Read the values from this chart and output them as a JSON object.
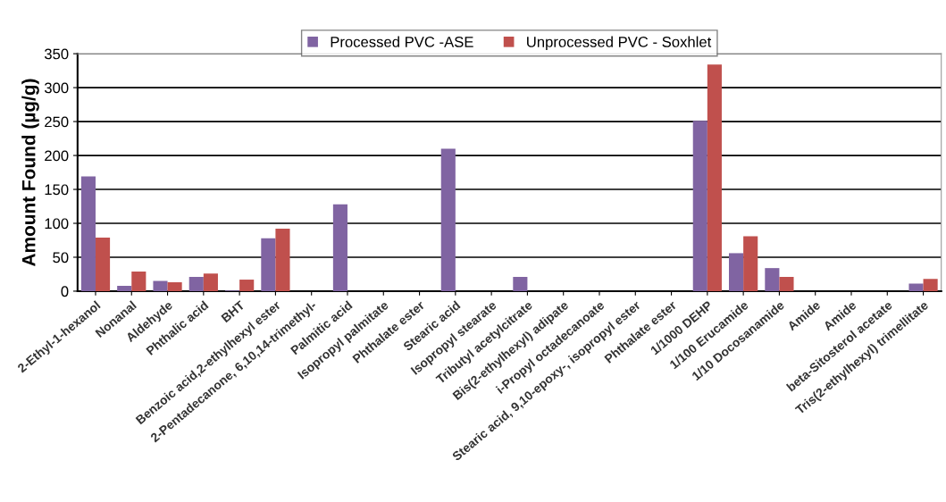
{
  "chart_data": {
    "type": "bar",
    "ylabel": "Amount Found (µg/g)",
    "categories": [
      "2-Ethyl-1-hexanol",
      "Nonanal",
      "Aldehyde",
      "Phthalic acid",
      "BHT",
      "Benzoic acid,2-ethylhexyl ester",
      "2-Pentadecanone, 6,10,14-trimethyl-",
      "Palmitic acid",
      "Isopropyl palmitate",
      "Phthalate ester",
      "Stearic acid",
      "Isopropyl stearate",
      "Tributyl acetylcitrate",
      "Bis(2-ethylhexyl) adipate",
      "i-Propyl octadecanoate",
      "Stearic acid, 9,10-epoxy-, isopropyl ester",
      "Phthalate ester",
      "1/1000 DEHP",
      "1/100 Erucamide",
      "1/10 Docosanamide",
      "Amide",
      "Amide",
      "beta-Sitosterol acetate",
      "Tris(2-ethylhexyl) trimellitate"
    ],
    "series": [
      {
        "name": "Processed PVC -ASE",
        "color": "#8064a2",
        "values": [
          169,
          8,
          15,
          21,
          1,
          78,
          null,
          128,
          null,
          null,
          210,
          null,
          21,
          null,
          null,
          null,
          null,
          251,
          56,
          34,
          null,
          null,
          null,
          11
        ]
      },
      {
        "name": "Unprocessed PVC - Soxhlet",
        "color": "#c0504d",
        "values": [
          79,
          29,
          13,
          26,
          17,
          92,
          null,
          null,
          null,
          null,
          null,
          null,
          null,
          null,
          null,
          null,
          null,
          334,
          81,
          21,
          null,
          null,
          null,
          18
        ]
      }
    ],
    "ylim": [
      0,
      350
    ],
    "yticks": [
      0,
      50,
      100,
      150,
      200,
      250,
      300,
      350
    ],
    "grid": "y",
    "legend": "top"
  }
}
